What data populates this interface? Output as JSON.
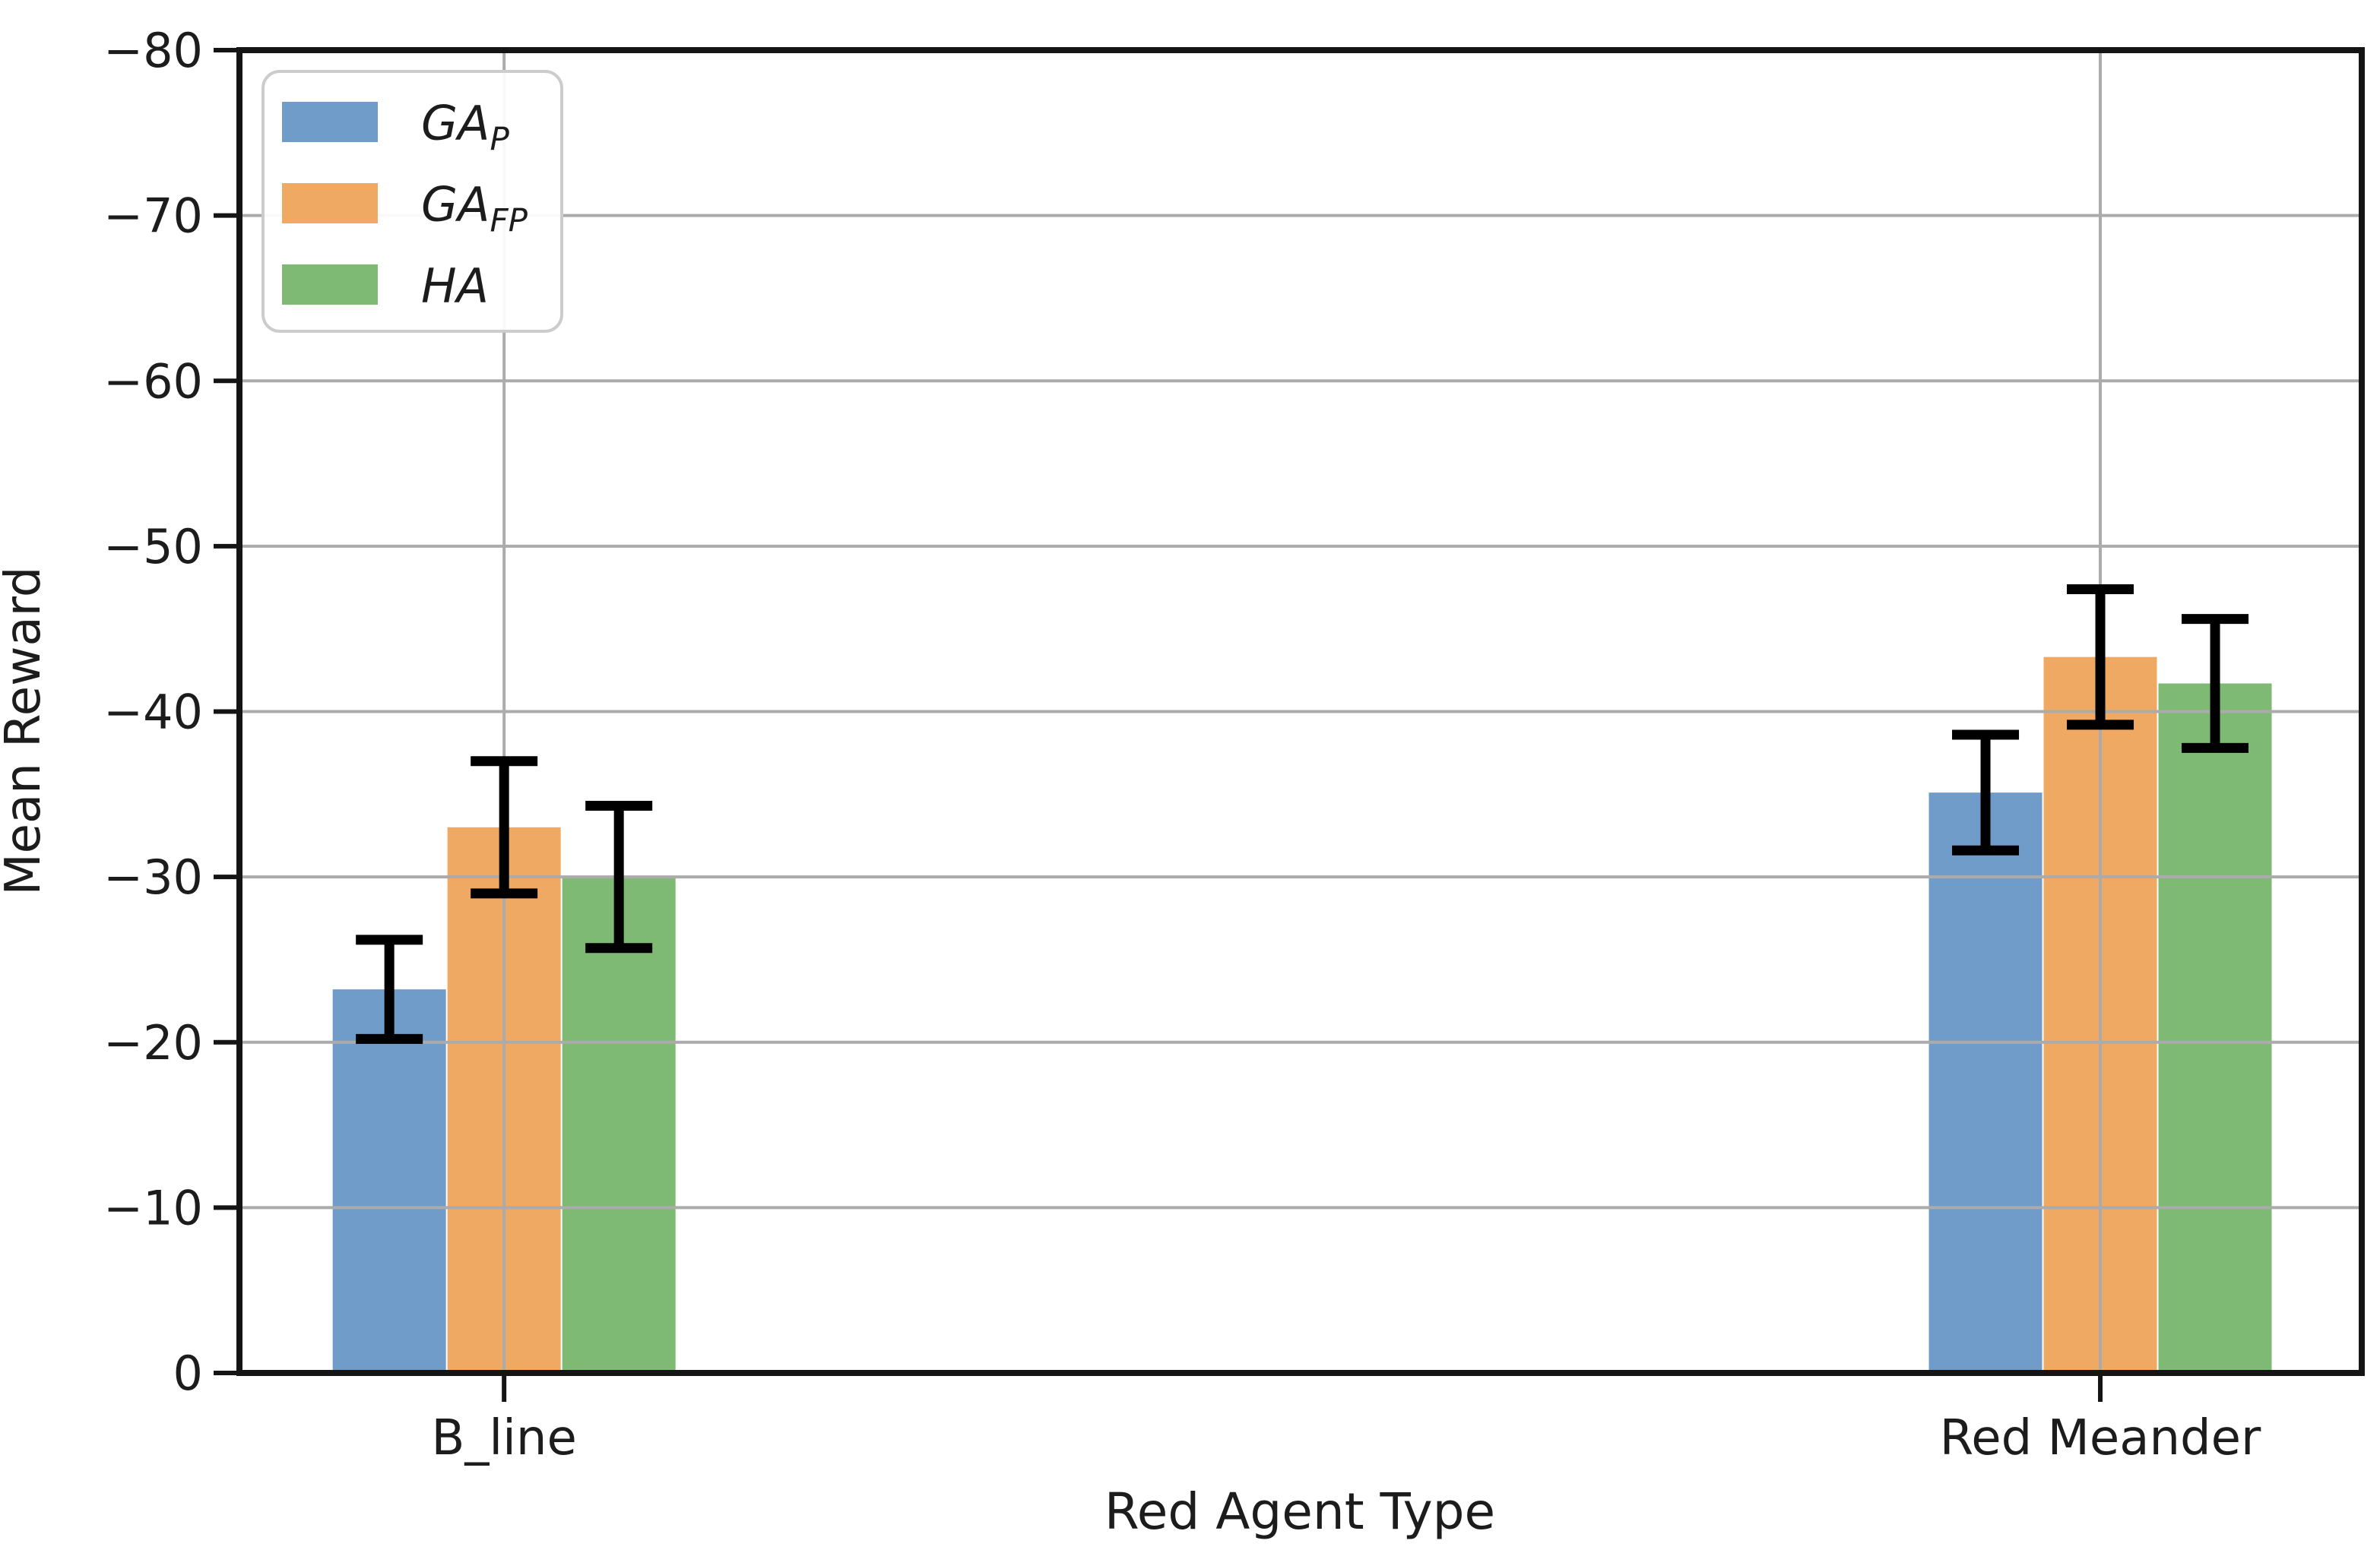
{
  "chart_data": {
    "type": "bar",
    "title": "",
    "xlabel": "Red Agent Type",
    "ylabel": "Mean Reward",
    "categories": [
      "B_line",
      "Red Meander"
    ],
    "series": [
      {
        "name": "GA_P",
        "label_base": "GA",
        "label_sub": "P",
        "color": "#6f9cc8",
        "values": [
          -23.2,
          -35.1
        ],
        "errors": [
          3.0,
          3.5
        ]
      },
      {
        "name": "GA_FP",
        "label_base": "GA",
        "label_sub": "FP",
        "color": "#f0a963",
        "values": [
          -33.0,
          -43.3
        ],
        "errors": [
          4.0,
          4.1
        ]
      },
      {
        "name": "HA",
        "label_base": "HA",
        "label_sub": "",
        "color": "#7fba74",
        "values": [
          -30.0,
          -41.7
        ],
        "errors": [
          4.3,
          3.9
        ]
      }
    ],
    "y_ticks": [
      -80,
      -70,
      -60,
      -50,
      -40,
      -30,
      -20,
      -10,
      0
    ],
    "ylim": [
      -80,
      0
    ],
    "y_axis_inverted": true,
    "grid": true,
    "grid_on_top_of_bars": true,
    "legend_position": "upper-left",
    "colors": {
      "grid": "#ababab",
      "axis": "#141414",
      "text": "#1c1c1c",
      "error_bar": "#000000",
      "legend_border": "#cccccc",
      "background": "#ffffff"
    }
  }
}
